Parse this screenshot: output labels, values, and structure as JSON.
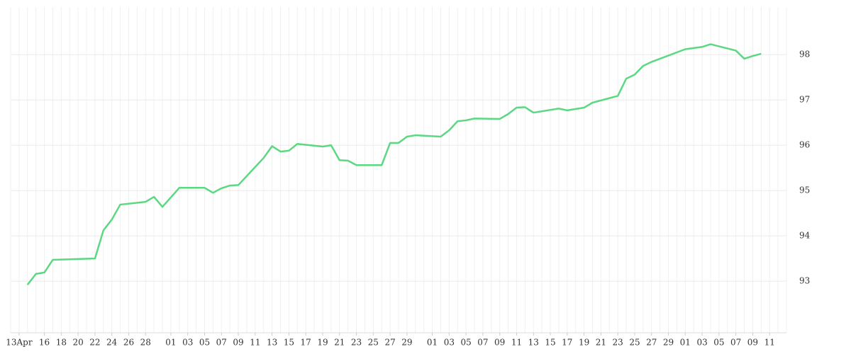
{
  "chart_data": {
    "type": "line",
    "x": [
      "04-14",
      "04-15",
      "04-16",
      "04-17",
      "04-22",
      "04-23",
      "04-24",
      "04-25",
      "04-28",
      "04-29",
      "04-30",
      "05-02",
      "05-05",
      "05-06",
      "05-07",
      "05-08",
      "05-09",
      "05-12",
      "05-13",
      "05-14",
      "05-15",
      "05-16",
      "05-19",
      "05-20",
      "05-21",
      "05-22",
      "05-23",
      "05-26",
      "05-27",
      "05-28",
      "05-29",
      "05-30",
      "06-02",
      "06-03",
      "06-04",
      "06-05",
      "06-06",
      "06-09",
      "06-10",
      "06-11",
      "06-12",
      "06-13",
      "06-16",
      "06-17",
      "06-19",
      "06-20",
      "06-23",
      "06-24",
      "06-25",
      "06-26",
      "06-27",
      "07-01",
      "07-03",
      "07-04",
      "07-07",
      "07-08",
      "07-09",
      "07-10"
    ],
    "series": [
      {
        "color": "#5cd882",
        "values": [
          92.92,
          93.16,
          93.19,
          93.47,
          93.5,
          94.12,
          94.36,
          94.69,
          94.75,
          94.86,
          94.64,
          95.06,
          95.06,
          94.95,
          95.05,
          95.11,
          95.12,
          95.72,
          95.98,
          95.86,
          95.88,
          96.03,
          95.97,
          96.0,
          95.67,
          95.66,
          95.56,
          95.56,
          96.05,
          96.05,
          96.19,
          96.22,
          96.19,
          96.33,
          96.53,
          96.55,
          96.59,
          96.58,
          96.69,
          96.83,
          96.84,
          96.72,
          96.81,
          96.77,
          96.83,
          96.94,
          97.09,
          97.47,
          97.56,
          97.75,
          97.84,
          98.12,
          98.17,
          98.23,
          98.09,
          97.91,
          97.97,
          98.02
        ]
      }
    ],
    "xlim": [
      "04-12",
      "07-13"
    ],
    "xticks": [
      {
        "value": "04-13",
        "label": "13Apr"
      },
      {
        "value": "04-16",
        "label": "16"
      },
      {
        "value": "04-18",
        "label": "18"
      },
      {
        "value": "04-20",
        "label": "20"
      },
      {
        "value": "04-22",
        "label": "22"
      },
      {
        "value": "04-24",
        "label": "24"
      },
      {
        "value": "04-26",
        "label": "26"
      },
      {
        "value": "04-28",
        "label": "28"
      },
      {
        "value": "05-01",
        "label": "01"
      },
      {
        "value": "05-03",
        "label": "03"
      },
      {
        "value": "05-05",
        "label": "05"
      },
      {
        "value": "05-07",
        "label": "07"
      },
      {
        "value": "05-09",
        "label": "09"
      },
      {
        "value": "05-11",
        "label": "11"
      },
      {
        "value": "05-13",
        "label": "13"
      },
      {
        "value": "05-15",
        "label": "15"
      },
      {
        "value": "05-17",
        "label": "17"
      },
      {
        "value": "05-19",
        "label": "19"
      },
      {
        "value": "05-21",
        "label": "21"
      },
      {
        "value": "05-23",
        "label": "23"
      },
      {
        "value": "05-25",
        "label": "25"
      },
      {
        "value": "05-27",
        "label": "27"
      },
      {
        "value": "05-29",
        "label": "29"
      },
      {
        "value": "06-01",
        "label": "01"
      },
      {
        "value": "06-03",
        "label": "03"
      },
      {
        "value": "06-05",
        "label": "05"
      },
      {
        "value": "06-07",
        "label": "07"
      },
      {
        "value": "06-09",
        "label": "09"
      },
      {
        "value": "06-11",
        "label": "11"
      },
      {
        "value": "06-13",
        "label": "13"
      },
      {
        "value": "06-15",
        "label": "15"
      },
      {
        "value": "06-17",
        "label": "17"
      },
      {
        "value": "06-19",
        "label": "19"
      },
      {
        "value": "06-21",
        "label": "21"
      },
      {
        "value": "06-23",
        "label": "23"
      },
      {
        "value": "06-25",
        "label": "25"
      },
      {
        "value": "06-27",
        "label": "27"
      },
      {
        "value": "06-29",
        "label": "29"
      },
      {
        "value": "07-01",
        "label": "01"
      },
      {
        "value": "07-03",
        "label": "03"
      },
      {
        "value": "07-05",
        "label": "05"
      },
      {
        "value": "07-07",
        "label": "07"
      },
      {
        "value": "07-09",
        "label": "09"
      },
      {
        "value": "07-11",
        "label": "11"
      }
    ],
    "ylim": [
      91.86,
      99.05
    ],
    "yticks": [
      93,
      94,
      95,
      96,
      97,
      98
    ],
    "grid": true
  }
}
